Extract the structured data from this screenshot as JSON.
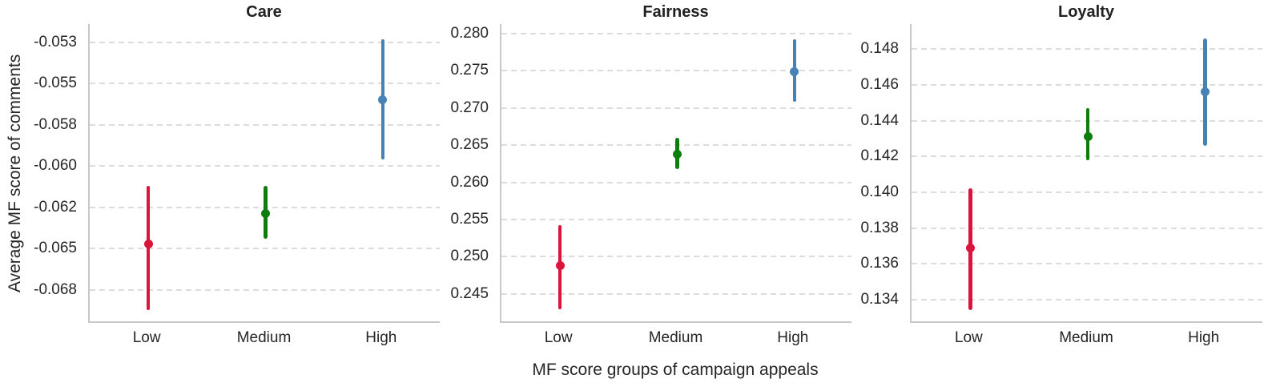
{
  "figure": {
    "y_axis_label": "Average MF score of comments",
    "x_axis_label": "MF score groups of campaign appeals",
    "background_color": "#ffffff",
    "text_color": "#262626",
    "grid_color": "#dcdcdc",
    "spine_color": "#c8c8c8"
  },
  "palette": {
    "Low": "#dc143c",
    "Medium": "#0d7e0d",
    "High": "#4682b4"
  },
  "chart_data": [
    {
      "type": "scatter",
      "title": "Care",
      "categories": [
        "Low",
        "Medium",
        "High"
      ],
      "ylim": [
        -0.0695,
        -0.0514
      ],
      "grid": true,
      "ytick_values": [
        -0.0525,
        -0.055,
        -0.0575,
        -0.06,
        -0.0625,
        -0.065,
        -0.0675
      ],
      "ytick_labels": [
        "-0.053",
        "-0.055",
        "-0.058",
        "-0.060",
        "-0.062",
        "-0.065",
        "-0.068"
      ],
      "points": [
        {
          "category": "Low",
          "mean": -0.0647,
          "ci_low": -0.0687,
          "ci_high": -0.0612
        },
        {
          "category": "Medium",
          "mean": -0.0629,
          "ci_low": -0.0644,
          "ci_high": -0.0612
        },
        {
          "category": "High",
          "mean": -0.056,
          "ci_low": -0.0596,
          "ci_high": -0.0523
        }
      ]
    },
    {
      "type": "scatter",
      "title": "Fairness",
      "categories": [
        "Low",
        "Medium",
        "High"
      ],
      "ylim": [
        0.2411,
        0.2813
      ],
      "grid": true,
      "ytick_values": [
        0.28,
        0.275,
        0.27,
        0.265,
        0.26,
        0.255,
        0.25,
        0.245
      ],
      "ytick_labels": [
        "0.280",
        "0.275",
        "0.270",
        "0.265",
        "0.260",
        "0.255",
        "0.250",
        "0.245"
      ],
      "points": [
        {
          "category": "Low",
          "mean": 0.2488,
          "ci_low": 0.2429,
          "ci_high": 0.2542
        },
        {
          "category": "Medium",
          "mean": 0.2638,
          "ci_low": 0.2618,
          "ci_high": 0.266
        },
        {
          "category": "High",
          "mean": 0.2749,
          "ci_low": 0.2708,
          "ci_high": 0.2792
        }
      ]
    },
    {
      "type": "scatter",
      "title": "Loyalty",
      "categories": [
        "Low",
        "Medium",
        "High"
      ],
      "ylim": [
        0.1327,
        0.1494
      ],
      "grid": true,
      "ytick_values": [
        0.148,
        0.146,
        0.144,
        0.142,
        0.14,
        0.138,
        0.136,
        0.134
      ],
      "ytick_labels": [
        "0.148",
        "0.146",
        "0.144",
        "0.142",
        "0.140",
        "0.138",
        "0.136",
        "0.134"
      ],
      "points": [
        {
          "category": "Low",
          "mean": 0.1369,
          "ci_low": 0.1334,
          "ci_high": 0.1402
        },
        {
          "category": "Medium",
          "mean": 0.1431,
          "ci_low": 0.1418,
          "ci_high": 0.1447
        },
        {
          "category": "High",
          "mean": 0.1456,
          "ci_low": 0.1426,
          "ci_high": 0.1486
        }
      ]
    }
  ]
}
